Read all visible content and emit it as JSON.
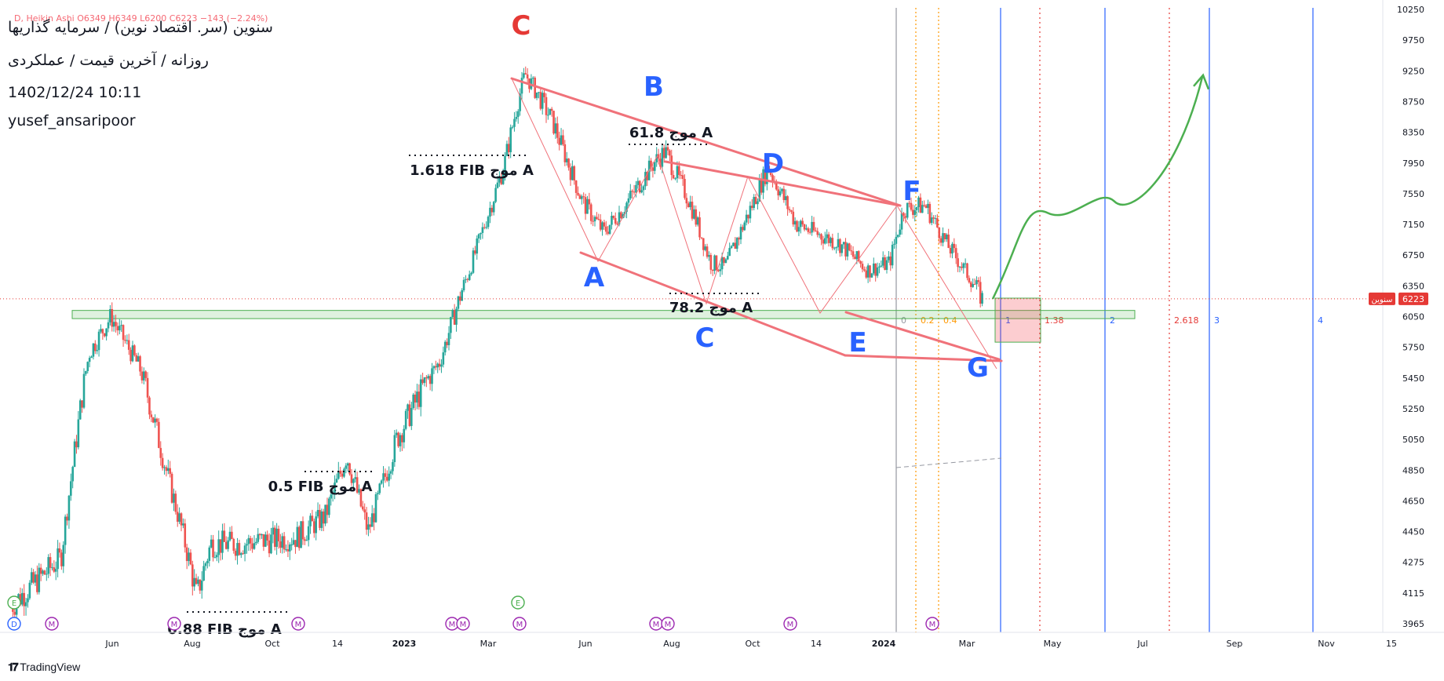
{
  "header": {
    "ohlc": "D, Heikin Ashi  O6349  H6349  L6200  C6223  −143 (−2.24%)",
    "symbol_line": "سنوین (سر. اقتصاد نوین) / سرمایه گذاریها",
    "subtitle_line": "روزانه / آخرین قیمت / عملکردی",
    "date_line": "1402/12/24 10:11",
    "author": "yusef_ansaripoor"
  },
  "footer": {
    "brand": "TradingView"
  },
  "colors": {
    "up": "#26a69a",
    "down": "#ef5350",
    "wedge": "#f0727a",
    "wave_label": "#2962ff",
    "peak_label": "#e53935",
    "projection": "#4caf50",
    "price_line": "#e53935",
    "fib_time_blue": "#2962ff",
    "fib_time_red": "#e53935",
    "fib_time_orange": "#ff9800"
  },
  "chart_data": {
    "type": "candlestick",
    "style": "Heikin Ashi",
    "timeframe": "D",
    "symbol": "سنوین",
    "last_price": 6223,
    "y_ticks": [
      10250,
      9750,
      9250,
      8750,
      8350,
      7950,
      7550,
      7150,
      6750,
      6350,
      6050,
      5750,
      5450,
      5250,
      5050,
      4850,
      4650,
      4450,
      4275,
      4115,
      3965
    ],
    "x_ticks": [
      "Jun",
      "Aug",
      "Oct",
      "14",
      "2023",
      "Mar",
      "Jun",
      "Aug",
      "Oct",
      "14",
      "2024",
      "Mar",
      "May",
      "Jul",
      "Sep",
      "Nov",
      "15"
    ],
    "price_path": [
      {
        "t": 0,
        "p": 4050
      },
      {
        "t": 0.035,
        "p": 4300
      },
      {
        "t": 0.055,
        "p": 5700
      },
      {
        "t": 0.07,
        "p": 6050
      },
      {
        "t": 0.09,
        "p": 5550
      },
      {
        "t": 0.11,
        "p": 4800
      },
      {
        "t": 0.13,
        "p": 4100
      },
      {
        "t": 0.14,
        "p": 4380
      },
      {
        "t": 0.16,
        "p": 4380
      },
      {
        "t": 0.2,
        "p": 4420
      },
      {
        "t": 0.22,
        "p": 4550
      },
      {
        "t": 0.235,
        "p": 4950
      },
      {
        "t": 0.25,
        "p": 4450
      },
      {
        "t": 0.27,
        "p": 5050
      },
      {
        "t": 0.3,
        "p": 5600
      },
      {
        "t": 0.32,
        "p": 6500
      },
      {
        "t": 0.345,
        "p": 7900
      },
      {
        "t": 0.36,
        "p": 9200
      },
      {
        "t": 0.38,
        "p": 8450
      },
      {
        "t": 0.4,
        "p": 7450
      },
      {
        "t": 0.415,
        "p": 7050
      },
      {
        "t": 0.43,
        "p": 7400
      },
      {
        "t": 0.45,
        "p": 7950
      },
      {
        "t": 0.458,
        "p": 8100
      },
      {
        "t": 0.475,
        "p": 7450
      },
      {
        "t": 0.49,
        "p": 6650
      },
      {
        "t": 0.5,
        "p": 6600
      },
      {
        "t": 0.52,
        "p": 7450
      },
      {
        "t": 0.53,
        "p": 7900
      },
      {
        "t": 0.55,
        "p": 7150
      },
      {
        "t": 0.58,
        "p": 6900
      },
      {
        "t": 0.6,
        "p": 6550
      },
      {
        "t": 0.615,
        "p": 6650
      },
      {
        "t": 0.625,
        "p": 7350
      },
      {
        "t": 0.64,
        "p": 7400
      },
      {
        "t": 0.655,
        "p": 6900
      },
      {
        "t": 0.68,
        "p": 6223
      }
    ],
    "projection_path": [
      6223,
      7300,
      7600,
      7450,
      7600,
      8600,
      9150
    ],
    "wave_labels": [
      "A",
      "B",
      "C",
      "D",
      "E",
      "F",
      "G"
    ],
    "peak_label": "C",
    "fib_annotations": [
      "1.618 FIB موج A",
      "61.8 موج A",
      "78.2 موج A",
      "0.5 FIB موج A",
      "0.88 FIB موج A"
    ],
    "fib_time_levels": [
      "0",
      "0.2",
      "0.4",
      "1",
      "1.38",
      "2",
      "2.618",
      "3",
      "4"
    ],
    "support_zone": [
      6030,
      6110
    ],
    "target_box": [
      5800,
      6230
    ],
    "event_markers": [
      "D",
      "E",
      "M"
    ],
    "price_tag": "سنوین",
    "price_value": "6223"
  }
}
